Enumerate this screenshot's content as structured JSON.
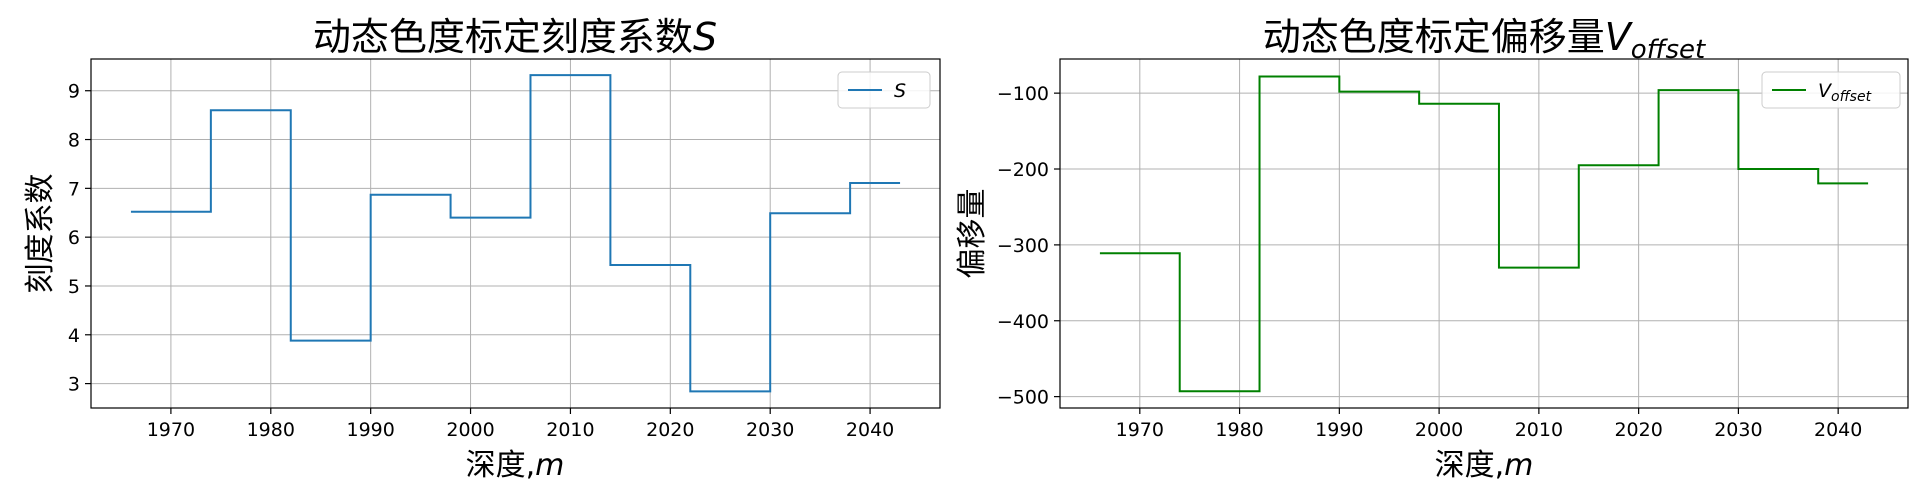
{
  "chart_data": [
    {
      "type": "line",
      "title_main": "动态色度标定刻度系数",
      "title_symbol": "S",
      "xlabel_main": "深度,",
      "xlabel_unit": "m",
      "ylabel": "刻度系数",
      "xlim": [
        1962,
        2047
      ],
      "ylim": [
        2.5,
        9.65
      ],
      "xticks": [
        1970,
        1980,
        1990,
        2000,
        2010,
        2020,
        2030,
        2040
      ],
      "yticks": [
        3,
        4,
        5,
        6,
        7,
        8,
        9
      ],
      "grid": true,
      "legend_position": "top-right",
      "series": [
        {
          "name": "S",
          "color": "#1f77b4",
          "x": [
            1966,
            1974,
            1974,
            1982,
            1982,
            1990,
            1990,
            1998,
            1998,
            2006,
            2006,
            2014,
            2014,
            2022,
            2022,
            2030,
            2030,
            2038,
            2038,
            2043
          ],
          "y": [
            6.52,
            6.52,
            8.6,
            8.6,
            3.88,
            3.88,
            6.87,
            6.87,
            6.4,
            6.4,
            9.32,
            9.32,
            5.43,
            5.43,
            2.84,
            2.84,
            6.49,
            6.49,
            7.11,
            7.11
          ]
        }
      ]
    },
    {
      "type": "line",
      "title_main": "动态色度标定偏移量",
      "title_symbol": "V",
      "title_subscript": "offset",
      "xlabel_main": "深度,",
      "xlabel_unit": "m",
      "ylabel": "偏移量",
      "xlim": [
        1962,
        2047
      ],
      "ylim": [
        -515,
        -55
      ],
      "xticks": [
        1970,
        1980,
        1990,
        2000,
        2010,
        2020,
        2030,
        2040
      ],
      "yticks": [
        -500,
        -400,
        -300,
        -200,
        -100
      ],
      "ytick_labels": [
        "−500",
        "−400",
        "−300",
        "−200",
        "−100"
      ],
      "grid": true,
      "legend_position": "top-right",
      "series": [
        {
          "name": "V",
          "name_subscript": "offset",
          "color": "#008000",
          "x": [
            1966,
            1974,
            1974,
            1982,
            1982,
            1990,
            1990,
            1998,
            1998,
            2006,
            2006,
            2014,
            2014,
            2022,
            2022,
            2030,
            2030,
            2038,
            2038,
            2043
          ],
          "y": [
            -311,
            -311,
            -493,
            -493,
            -78,
            -78,
            -98,
            -98,
            -114,
            -114,
            -330,
            -330,
            -195,
            -195,
            -96,
            -96,
            -200,
            -200,
            -219,
            -219
          ]
        }
      ]
    }
  ]
}
